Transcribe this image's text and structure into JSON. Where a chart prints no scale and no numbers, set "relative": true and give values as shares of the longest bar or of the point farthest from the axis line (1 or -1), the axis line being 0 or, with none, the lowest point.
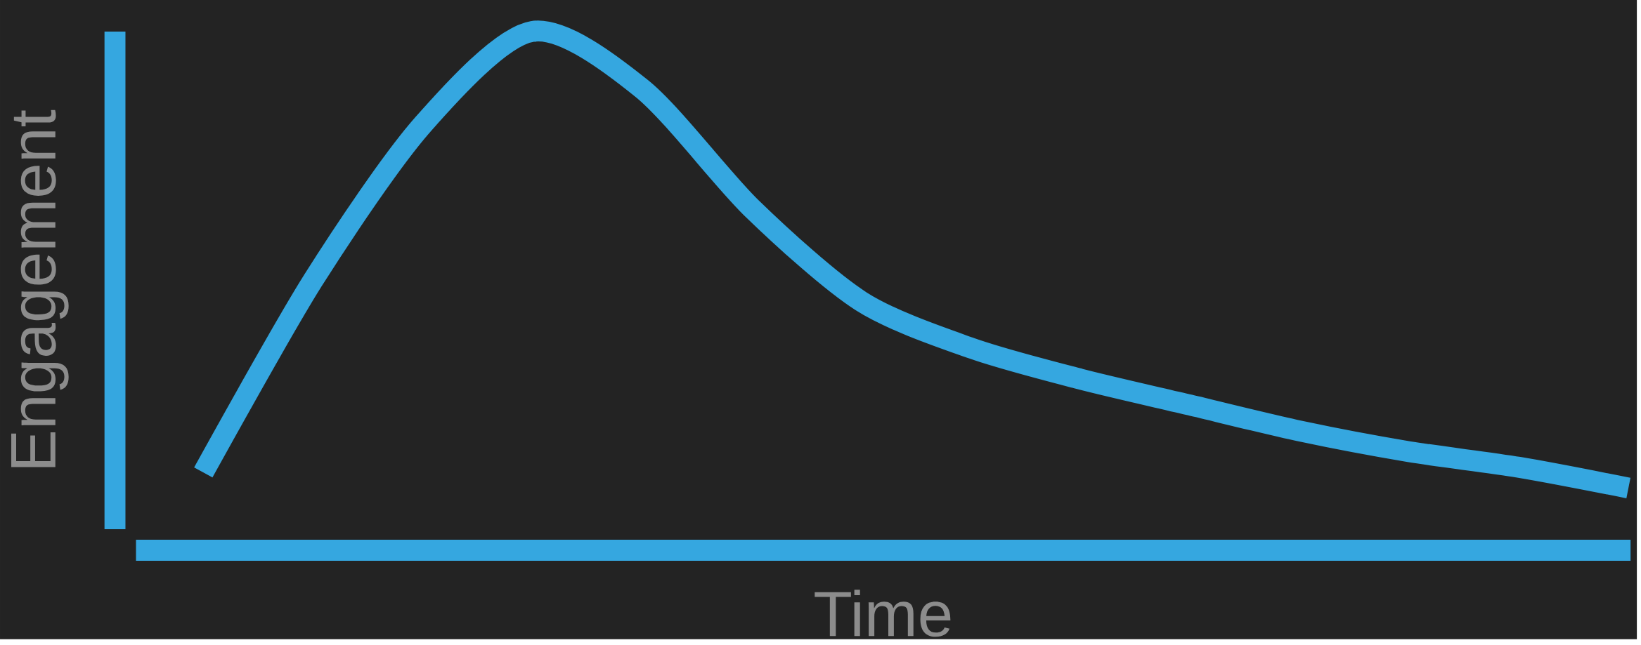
{
  "chart_data": {
    "type": "line",
    "relative": true,
    "xlabel": "Time",
    "ylabel": "Engagement",
    "categories": [
      null,
      null,
      null,
      null,
      null,
      null,
      null,
      null,
      null,
      null,
      null,
      null,
      null,
      null
    ],
    "series": [
      {
        "color": "#35a7e0",
        "values": [
          0.15,
          0.52,
          0.82,
          1.0,
          0.89,
          0.66,
          0.48,
          0.39,
          0.33,
          0.28,
          0.23,
          0.19,
          0.16,
          0.12
        ]
      }
    ],
    "marker": "none",
    "line_style": "solid"
  }
}
